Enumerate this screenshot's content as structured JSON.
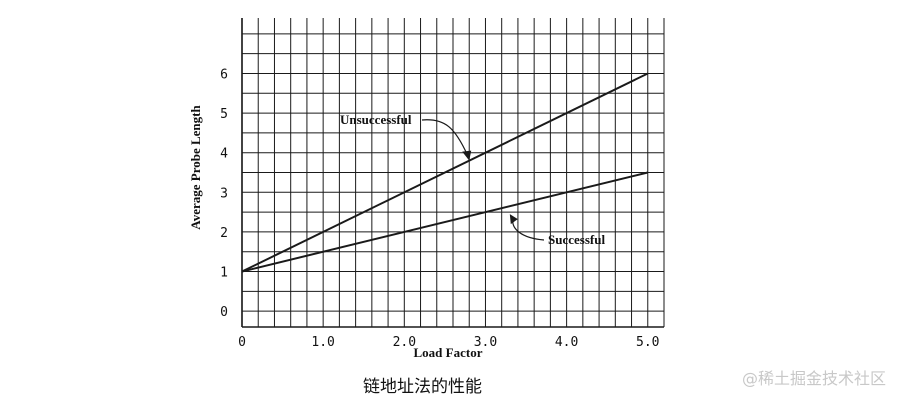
{
  "chart_data": {
    "type": "line",
    "xlabel": "Load Factor",
    "ylabel": "Average Probe Length",
    "xlim": [
      0,
      5.2
    ],
    "ylim": [
      -0.4,
      7.4
    ],
    "grid": true,
    "x_ticks": [
      {
        "value": 0,
        "label": "0"
      },
      {
        "value": 1,
        "label": "1.0"
      },
      {
        "value": 2,
        "label": "2.0"
      },
      {
        "value": 3,
        "label": "3.0"
      },
      {
        "value": 4,
        "label": "4.0"
      },
      {
        "value": 5,
        "label": "5.0"
      }
    ],
    "y_ticks": [
      {
        "value": 0,
        "label": "0"
      },
      {
        "value": 1,
        "label": "1"
      },
      {
        "value": 2,
        "label": "2"
      },
      {
        "value": 3,
        "label": "3"
      },
      {
        "value": 4,
        "label": "4"
      },
      {
        "value": 5,
        "label": "5"
      },
      {
        "value": 6,
        "label": "6"
      }
    ],
    "series": [
      {
        "name": "Unsuccessful",
        "x": [
          0,
          5
        ],
        "y": [
          1,
          6
        ]
      },
      {
        "name": "Successful",
        "x": [
          0,
          5
        ],
        "y": [
          1,
          3.5
        ]
      }
    ],
    "annotations": [
      {
        "text": "Unsuccessful",
        "points_to": {
          "x": 2.8,
          "y": 3.8
        }
      },
      {
        "text": "Successful",
        "points_to": {
          "x": 3.3,
          "y": 2.45
        }
      }
    ]
  },
  "caption": "链地址法的性能",
  "watermark": "@稀土掘金技术社区"
}
